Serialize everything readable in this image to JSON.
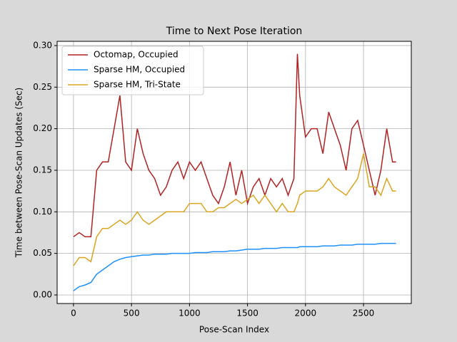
{
  "chart_data": {
    "type": "line",
    "title": "Time to Next Pose Iteration",
    "x_label": "Pose-Scan Index",
    "y_label": "Time between Pose-Scan Updates (Sec)",
    "x": [
      0,
      50,
      100,
      150,
      200,
      250,
      300,
      350,
      400,
      450,
      500,
      550,
      600,
      650,
      700,
      750,
      800,
      850,
      900,
      950,
      1000,
      1050,
      1100,
      1150,
      1200,
      1250,
      1300,
      1350,
      1400,
      1450,
      1500,
      1550,
      1600,
      1650,
      1700,
      1750,
      1800,
      1850,
      1900,
      1930,
      1950,
      2000,
      2050,
      2100,
      2150,
      2200,
      2250,
      2300,
      2350,
      2400,
      2450,
      2500,
      2550,
      2600,
      2650,
      2700,
      2750,
      2780
    ],
    "series": [
      {
        "name": "Octomap, Occupied",
        "color": "#b22222",
        "values": [
          0.07,
          0.075,
          0.07,
          0.07,
          0.15,
          0.16,
          0.16,
          0.2,
          0.24,
          0.16,
          0.15,
          0.2,
          0.17,
          0.15,
          0.14,
          0.12,
          0.13,
          0.15,
          0.16,
          0.14,
          0.16,
          0.15,
          0.16,
          0.14,
          0.12,
          0.11,
          0.13,
          0.16,
          0.12,
          0.15,
          0.11,
          0.13,
          0.14,
          0.12,
          0.14,
          0.13,
          0.14,
          0.12,
          0.14,
          0.29,
          0.24,
          0.19,
          0.2,
          0.2,
          0.17,
          0.22,
          0.2,
          0.18,
          0.15,
          0.2,
          0.21,
          0.18,
          0.15,
          0.12,
          0.15,
          0.2,
          0.16,
          0.16
        ]
      },
      {
        "name": "Sparse HM, Occupied",
        "color": "#1e90ff",
        "values": [
          0.005,
          0.01,
          0.012,
          0.015,
          0.025,
          0.03,
          0.035,
          0.04,
          0.043,
          0.045,
          0.046,
          0.047,
          0.048,
          0.048,
          0.049,
          0.049,
          0.049,
          0.05,
          0.05,
          0.05,
          0.05,
          0.051,
          0.051,
          0.051,
          0.052,
          0.052,
          0.052,
          0.053,
          0.053,
          0.054,
          0.055,
          0.055,
          0.055,
          0.056,
          0.056,
          0.056,
          0.057,
          0.057,
          0.057,
          0.057,
          0.058,
          0.058,
          0.058,
          0.058,
          0.059,
          0.059,
          0.059,
          0.06,
          0.06,
          0.06,
          0.061,
          0.061,
          0.061,
          0.061,
          0.062,
          0.062,
          0.062,
          0.062
        ]
      },
      {
        "name": "Sparse HM, Tri-State",
        "color": "#daa520",
        "values": [
          0.035,
          0.045,
          0.045,
          0.04,
          0.07,
          0.08,
          0.08,
          0.085,
          0.09,
          0.085,
          0.09,
          0.1,
          0.09,
          0.085,
          0.09,
          0.095,
          0.1,
          0.1,
          0.1,
          0.1,
          0.11,
          0.11,
          0.11,
          0.1,
          0.1,
          0.105,
          0.105,
          0.11,
          0.115,
          0.11,
          0.115,
          0.12,
          0.11,
          0.12,
          0.11,
          0.1,
          0.11,
          0.1,
          0.1,
          0.11,
          0.12,
          0.125,
          0.125,
          0.125,
          0.13,
          0.14,
          0.13,
          0.125,
          0.12,
          0.13,
          0.14,
          0.17,
          0.13,
          0.13,
          0.12,
          0.14,
          0.125,
          0.125
        ]
      }
    ],
    "xlim": [
      -141,
      2912
    ],
    "ylim": [
      -0.0103,
      0.3051
    ],
    "xticks": [
      0,
      500,
      1000,
      1500,
      2000,
      2500
    ],
    "yticks": [
      {
        "value": 0,
        "label": "0.00"
      },
      0.05,
      {
        "value": 0.1,
        "label": "0.10"
      },
      0.15,
      {
        "value": 0.2,
        "label": "0.20"
      },
      0.25,
      {
        "value": 0.3,
        "label": "0.30"
      }
    ],
    "grid": true,
    "legend": "upper left"
  }
}
